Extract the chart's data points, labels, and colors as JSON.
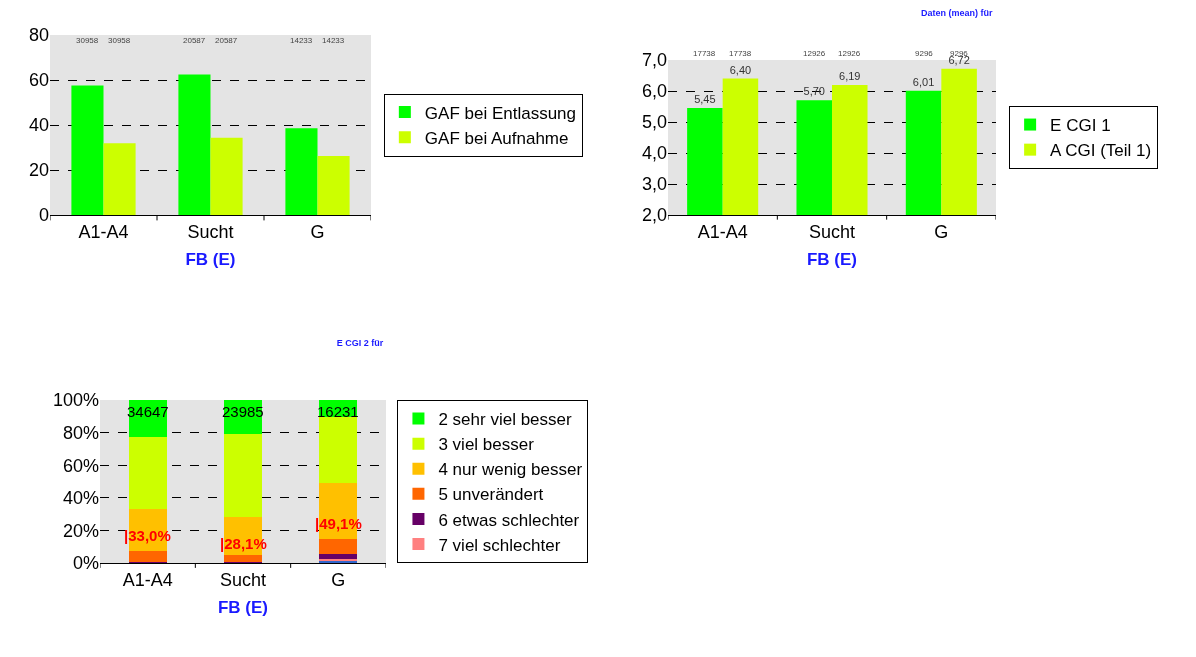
{
  "chart_data": [
    {
      "type": "bar",
      "xlabel": "FB (E)",
      "categories": [
        "A1-A4",
        "Sucht",
        "G"
      ],
      "series": [
        {
          "name": "GAF bei Entlassung",
          "color": "#00ff00",
          "values": [
            57.6,
            62.4,
            38.6
          ]
        },
        {
          "name": "GAF bei Aufnahme",
          "color": "#ccff00",
          "values": [
            31.9,
            34.3,
            26.2
          ]
        }
      ],
      "ylim": [
        0,
        80
      ],
      "yticks": [
        0,
        20,
        40,
        60,
        80
      ],
      "grid": "y",
      "legend": "right",
      "annotations": [
        "30958",
        "30958",
        "20587",
        "20587",
        "14233",
        "14233"
      ]
    },
    {
      "type": "bar",
      "title": "Daten (mean) für",
      "xlabel": "FB (E)",
      "categories": [
        "A1-A4",
        "Sucht",
        "G"
      ],
      "series": [
        {
          "name": "E CGI 1",
          "color": "#00ff00",
          "values": [
            5.45,
            5.7,
            6.01
          ],
          "value_labels": [
            "5,45",
            "5,70",
            "6,01"
          ]
        },
        {
          "name": "A CGI (Teil 1)",
          "color": "#ccff00",
          "values": [
            6.4,
            6.19,
            6.72
          ],
          "value_labels": [
            "6,40",
            "6,19",
            "6,72"
          ]
        }
      ],
      "ylim": [
        2,
        7
      ],
      "yticks": [
        {
          "value": 2,
          "label": "2,0"
        },
        {
          "value": 3,
          "label": "3,0"
        },
        {
          "value": 4,
          "label": "4,0"
        },
        {
          "value": 5,
          "label": "5,0"
        },
        {
          "value": 6,
          "label": "6,0"
        },
        {
          "value": 7,
          "label": "7,0"
        }
      ],
      "grid": "y",
      "legend": "right",
      "annotations": [
        "17738",
        "17738",
        "12926",
        "12926",
        "9296",
        "9296"
      ]
    },
    {
      "type": "bar",
      "title": "E CGI 2 für",
      "xlabel": "FB (E)",
      "categories": [
        "A1-A4",
        "Sucht",
        "G"
      ],
      "stacked": true,
      "series": [
        {
          "color": "#3366cc",
          "values": [
            0,
            0,
            1.2
          ]
        },
        {
          "name": "7 viel schlechter",
          "color": "#ff8080",
          "values": [
            0.1,
            0,
            1.3
          ]
        },
        {
          "name": "6 etwas schlechter",
          "color": "#660066",
          "values": [
            0.6,
            0.8,
            2.8
          ]
        },
        {
          "name": "5 unverändert",
          "color": "#ff6600",
          "values": [
            6.9,
            4.0,
            9.2
          ]
        },
        {
          "name": "4 nur wenig besser",
          "color": "#ffc000",
          "values": [
            25.4,
            23.3,
            34.6
          ]
        },
        {
          "name": "3 viel besser",
          "color": "#ccff00",
          "values": [
            44.4,
            51.3,
            40.6
          ]
        },
        {
          "name": "2 sehr viel besser",
          "color": "#00ff00",
          "values": [
            22.6,
            20.6,
            10.3
          ]
        }
      ],
      "ylim": [
        0,
        100
      ],
      "yticks": [
        {
          "value": 0,
          "label": "0%"
        },
        {
          "value": 20,
          "label": "20%"
        },
        {
          "value": 40,
          "label": "40%"
        },
        {
          "value": 60,
          "label": "60%"
        },
        {
          "value": 80,
          "label": "80%"
        },
        {
          "value": 100,
          "label": "100%"
        }
      ],
      "grid": "y",
      "legend": "right",
      "annotations": [
        "34647",
        "23985",
        "16231",
        "|33,0%",
        "|28,1%",
        "|49,1%"
      ]
    }
  ]
}
